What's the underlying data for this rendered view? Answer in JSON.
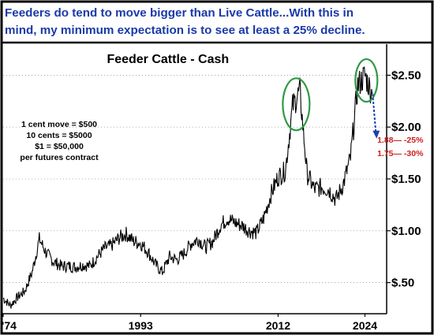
{
  "headline": {
    "line1": "Feeders do tend to move bigger than Live Cattle...With this in",
    "line2": "mind, my minimum expectation is to see at least a 25% decline."
  },
  "notes": [
    "1 cent move = $500",
    "10 cents = $5000",
    "$1 = $50,000",
    "per futures contract"
  ],
  "colors": {
    "headline": "#1a3aa8",
    "series": "#000000",
    "circle": "#2e9a45",
    "arrow": "#1f3fb5",
    "target": "#cc1f1f"
  },
  "chart_data": {
    "type": "line",
    "title": "Feeder Cattle - Cash",
    "xlabel": "",
    "ylabel": "",
    "x_ticks": [
      "'74",
      "1993",
      "2012",
      "2024"
    ],
    "y_ticks": [
      "$.50",
      "$1.00",
      "$1.50",
      "$2.00",
      "$2.50"
    ],
    "y_tick_values": [
      0.5,
      1.0,
      1.5,
      2.0,
      2.5
    ],
    "xlim": [
      1974,
      2027
    ],
    "ylim": [
      0.2,
      2.8
    ],
    "grid": "dotted",
    "series": [
      {
        "points": [
          [
            1974,
            0.35
          ],
          [
            1975,
            0.28
          ],
          [
            1976,
            0.36
          ],
          [
            1977,
            0.42
          ],
          [
            1978,
            0.6
          ],
          [
            1979,
            0.92
          ],
          [
            1980,
            0.78
          ],
          [
            1981,
            0.7
          ],
          [
            1982,
            0.66
          ],
          [
            1983,
            0.66
          ],
          [
            1984,
            0.65
          ],
          [
            1985,
            0.67
          ],
          [
            1986,
            0.66
          ],
          [
            1987,
            0.75
          ],
          [
            1988,
            0.83
          ],
          [
            1989,
            0.86
          ],
          [
            1990,
            0.93
          ],
          [
            1991,
            0.97
          ],
          [
            1992,
            0.9
          ],
          [
            1993,
            0.88
          ],
          [
            1994,
            0.8
          ],
          [
            1995,
            0.68
          ],
          [
            1996,
            0.6
          ],
          [
            1997,
            0.75
          ],
          [
            1998,
            0.72
          ],
          [
            1999,
            0.78
          ],
          [
            2000,
            0.88
          ],
          [
            2001,
            0.92
          ],
          [
            2002,
            0.84
          ],
          [
            2003,
            0.9
          ],
          [
            2004,
            1.05
          ],
          [
            2005,
            1.12
          ],
          [
            2006,
            1.08
          ],
          [
            2007,
            1.05
          ],
          [
            2008,
            1.0
          ],
          [
            2009,
            0.98
          ],
          [
            2010,
            1.12
          ],
          [
            2011,
            1.35
          ],
          [
            2012,
            1.52
          ],
          [
            2013,
            1.58
          ],
          [
            2014,
            2.2
          ],
          [
            2015,
            2.35
          ],
          [
            2016,
            1.55
          ],
          [
            2017,
            1.4
          ],
          [
            2018,
            1.42
          ],
          [
            2019,
            1.4
          ],
          [
            2020,
            1.3
          ],
          [
            2021,
            1.45
          ],
          [
            2022,
            1.7
          ],
          [
            2023,
            2.4
          ],
          [
            2024,
            2.5
          ],
          [
            2025,
            2.32
          ]
        ]
      }
    ],
    "annotations": [
      {
        "text": "1.88— -25%",
        "value": 1.88
      },
      {
        "text": "1.75— -30%",
        "value": 1.75
      }
    ]
  }
}
